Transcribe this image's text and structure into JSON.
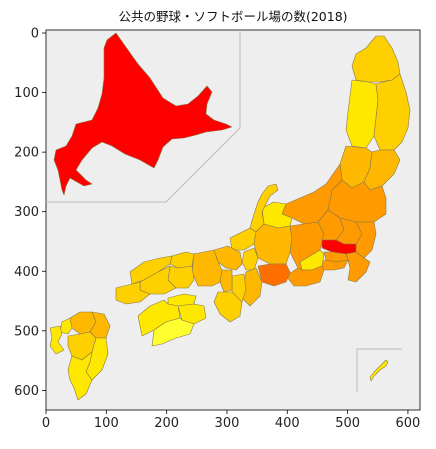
{
  "chart_data": {
    "type": "map",
    "title": "公共の野球・ソフトボール場の数(2018)",
    "xlim": [
      0,
      620
    ],
    "ylim": [
      0,
      630
    ],
    "x_ticks": [
      0,
      100,
      200,
      300,
      400,
      500,
      600
    ],
    "y_ticks": [
      0,
      100,
      200,
      300,
      400,
      500,
      600
    ],
    "background": "#eeeeee",
    "inset_frames": "hokkaido-top-left, okinawa-bottom-right",
    "colors": {
      "max": "#ff0000",
      "high": "#ff6f00",
      "mid_high": "#ff9a00",
      "mid": "#ffb800",
      "mid_low": "#ffd000",
      "low": "#ffe800",
      "min": "#ffff30"
    },
    "regions": [
      {
        "region": "hokkaido",
        "level": "max"
      },
      {
        "region": "aomori",
        "level": "mid_low"
      },
      {
        "region": "iwate",
        "level": "mid_low"
      },
      {
        "region": "akita",
        "level": "low"
      },
      {
        "region": "miyagi",
        "level": "mid"
      },
      {
        "region": "yamagata",
        "level": "mid"
      },
      {
        "region": "fukushima",
        "level": "mid_high"
      },
      {
        "region": "niigata",
        "level": "mid_high"
      },
      {
        "region": "ibaraki",
        "level": "mid_high"
      },
      {
        "region": "tochigi",
        "level": "mid_high"
      },
      {
        "region": "gunma",
        "level": "mid_high"
      },
      {
        "region": "saitama",
        "level": "max"
      },
      {
        "region": "chiba",
        "level": "mid_high"
      },
      {
        "region": "tokyo",
        "level": "mid_high"
      },
      {
        "region": "kanagawa",
        "level": "mid_high"
      },
      {
        "region": "nagano",
        "level": "mid_high"
      },
      {
        "region": "yamanashi",
        "level": "low"
      },
      {
        "region": "shizuoka",
        "level": "mid_high"
      },
      {
        "region": "toyama",
        "level": "low"
      },
      {
        "region": "ishikawa",
        "level": "mid_low"
      },
      {
        "region": "fukui",
        "level": "mid_low"
      },
      {
        "region": "gifu",
        "level": "mid"
      },
      {
        "region": "aichi",
        "level": "high"
      },
      {
        "region": "mie",
        "level": "mid"
      },
      {
        "region": "shiga",
        "level": "mid_low"
      },
      {
        "region": "kyoto",
        "level": "mid"
      },
      {
        "region": "osaka",
        "level": "mid"
      },
      {
        "region": "hyogo",
        "level": "mid"
      },
      {
        "region": "nara",
        "level": "mid_low"
      },
      {
        "region": "wakayama",
        "level": "mid_low"
      },
      {
        "region": "tottori",
        "level": "mid_low"
      },
      {
        "region": "shimane",
        "level": "mid_low"
      },
      {
        "region": "okayama",
        "level": "mid_low"
      },
      {
        "region": "hiroshima",
        "level": "mid_low"
      },
      {
        "region": "yamaguchi",
        "level": "mid_low"
      },
      {
        "region": "tokushima",
        "level": "low"
      },
      {
        "region": "kagawa",
        "level": "low"
      },
      {
        "region": "ehime",
        "level": "low"
      },
      {
        "region": "kochi",
        "level": "min"
      },
      {
        "region": "fukuoka",
        "level": "mid"
      },
      {
        "region": "saga",
        "level": "low"
      },
      {
        "region": "nagasaki",
        "level": "low"
      },
      {
        "region": "kumamoto",
        "level": "mid_low"
      },
      {
        "region": "oita",
        "level": "mid"
      },
      {
        "region": "miyazaki",
        "level": "low"
      },
      {
        "region": "kagoshima",
        "level": "low"
      },
      {
        "region": "okinawa",
        "level": "low"
      }
    ]
  }
}
